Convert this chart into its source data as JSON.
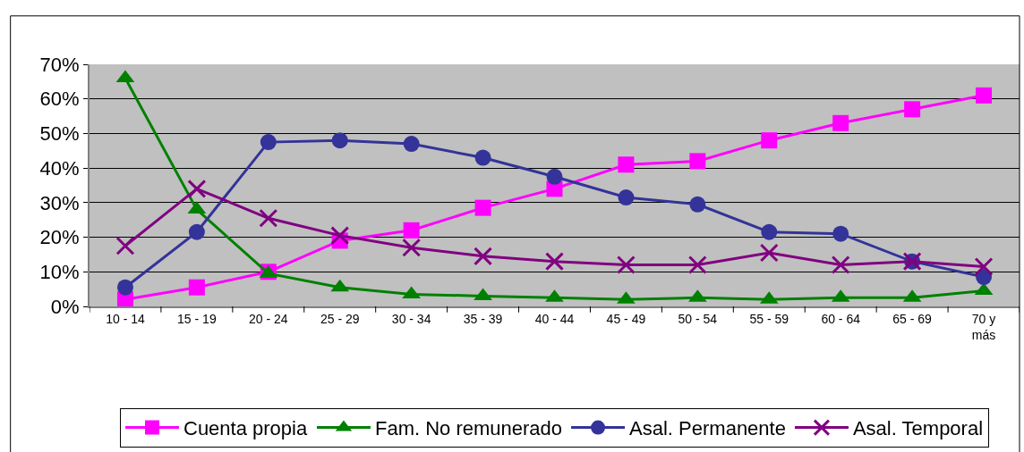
{
  "chart_data": {
    "type": "line",
    "categories": [
      "10 - 14",
      "15 - 19",
      "20 - 24",
      "25 - 29",
      "30 - 34",
      "35 - 39",
      "40 - 44",
      "45 - 49",
      "50 - 54",
      "55 - 59",
      "60 - 64",
      "65 - 69",
      "70 y\nmás"
    ],
    "series": [
      {
        "name": "Cuenta propia",
        "color": "#ff00ff",
        "marker": "square",
        "values": [
          2,
          5.5,
          10,
          19,
          22,
          28.5,
          34,
          41,
          42,
          48,
          53,
          57,
          61
        ]
      },
      {
        "name": "Fam. No remunerado",
        "color": "#008000",
        "marker": "triangle",
        "values": [
          66,
          28,
          9.5,
          5.5,
          3.5,
          3,
          2.5,
          2,
          2.5,
          2,
          2.5,
          2.5,
          4.5
        ]
      },
      {
        "name": "Asal. Permanente",
        "color": "#333399",
        "marker": "circle",
        "values": [
          5.5,
          21.5,
          47.5,
          48,
          47,
          43,
          37.5,
          31.5,
          29.5,
          21.5,
          21,
          13,
          8.5
        ]
      },
      {
        "name": "Asal. Temporal",
        "color": "#800080",
        "marker": "cross",
        "values": [
          17.5,
          34,
          25.5,
          20.5,
          17,
          14.5,
          13,
          12,
          12,
          15.5,
          12,
          13,
          11.5
        ]
      }
    ],
    "ylim": [
      0,
      70
    ],
    "yticks": [
      {
        "value": 0,
        "label": "0%"
      },
      {
        "value": 10,
        "label": "10%"
      },
      {
        "value": 20,
        "label": "20%"
      },
      {
        "value": 30,
        "label": "30%"
      },
      {
        "value": 40,
        "label": "40%"
      },
      {
        "value": 50,
        "label": "50%"
      },
      {
        "value": 60,
        "label": "60%"
      },
      {
        "value": 70,
        "label": "70%"
      }
    ],
    "grid": "y",
    "legend": "bottom",
    "line_style": "solid"
  }
}
